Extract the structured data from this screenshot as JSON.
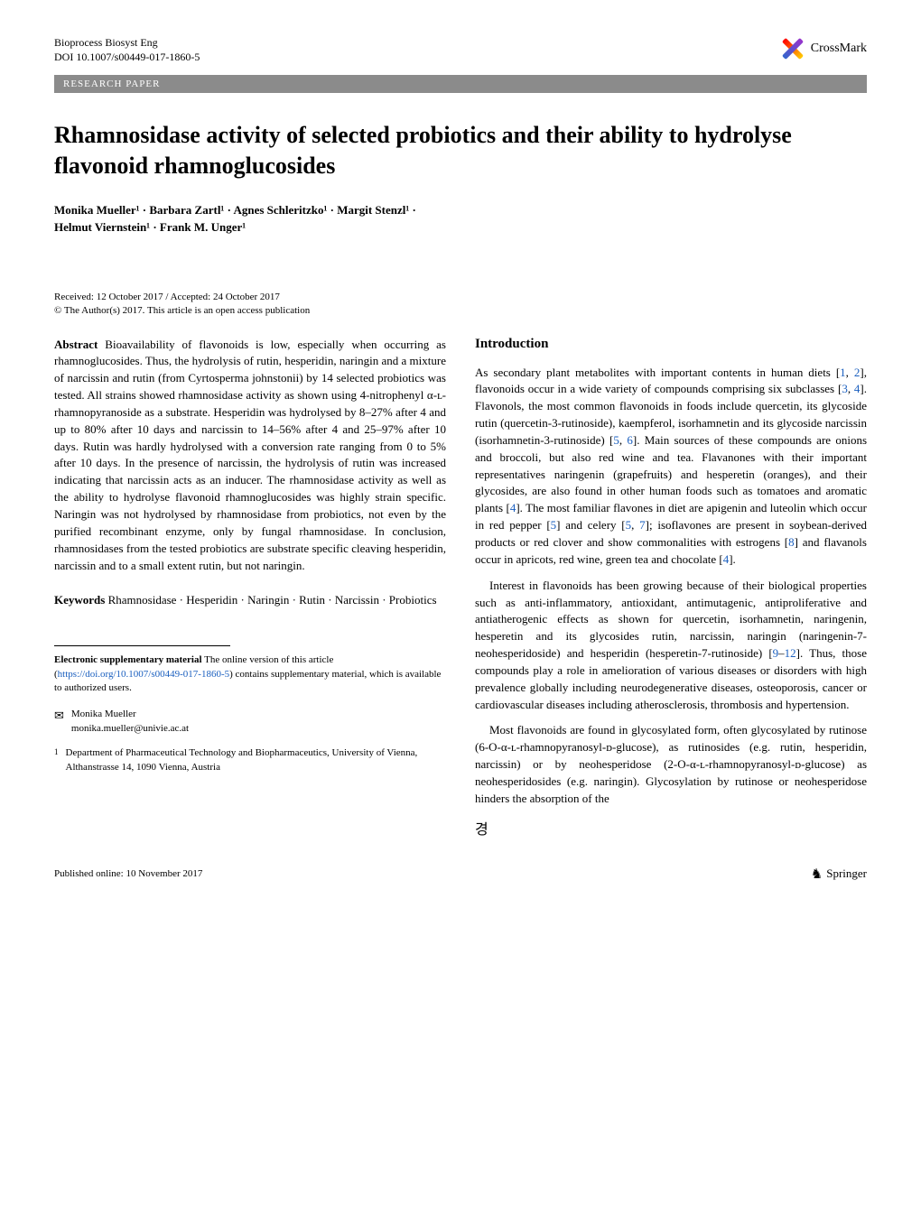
{
  "header": {
    "journal": "Bioprocess Biosyst Eng",
    "doi": "DOI 10.1007/s00449-017-1860-5",
    "crossmark_label": "CrossMark"
  },
  "paper_type": "RESEARCH PAPER",
  "title": "Rhamnosidase activity of selected probiotics and their ability to hydrolyse flavonoid rhamnoglucosides",
  "authors_line1": "Monika Mueller¹ · Barbara Zartl¹ · Agnes Schleritzko¹ · Margit Stenzl¹ ·",
  "authors_line2": "Helmut Viernstein¹ · Frank M. Unger¹",
  "dates": {
    "received_accepted": "Received: 12 October 2017 / Accepted: 24 October 2017",
    "copyright": "© The Author(s) 2017. This article is an open access publication"
  },
  "abstract": {
    "label": "Abstract",
    "text": "  Bioavailability of flavonoids is low, especially when occurring as rhamnoglucosides. Thus, the hydrolysis of rutin, hesperidin, naringin and a mixture of narcissin and rutin (from Cyrtosperma johnstonii) by 14 selected probiotics was tested. All strains showed rhamnosidase activity as shown using 4-nitrophenyl α-ʟ-rhamnopyranoside as a substrate. Hesperidin was hydrolysed by 8–27% after 4 and up to 80% after 10 days and narcissin to 14–56% after 4 and 25–97% after 10 days. Rutin was hardly hydrolysed with a conversion rate ranging from 0 to 5% after 10 days. In the presence of narcissin, the hydrolysis of rutin was increased indicating that narcissin acts as an inducer. The rhamnosidase activity as well as the ability to hydrolyse flavonoid rhamnoglucosides was highly strain specific. Naringin was not hydrolysed by rhamnosidase from probiotics, not even by the purified recombinant enzyme, only by fungal rhamnosidase. In conclusion, rhamnosidases from the tested probiotics are substrate specific cleaving hesperidin, narcissin and to a small extent rutin, but not naringin."
  },
  "keywords": {
    "label": "Keywords",
    "text": "  Rhamnosidase · Hesperidin · Naringin · Rutin · Narcissin · Probiotics"
  },
  "introduction": {
    "heading": "Introduction",
    "para1_a": "As secondary plant metabolites with important contents in human diets [",
    "ref1": "1",
    "para1_b": ", ",
    "ref2": "2",
    "para1_c": "], flavonoids occur in a wide variety of compounds comprising six subclasses [",
    "ref3": "3",
    "para1_d": ", ",
    "ref4": "4",
    "para1_e": "]. Flavonols, the most common flavonoids in foods include quercetin, its glycoside rutin (quercetin-3-rutinoside), kaempferol, isorhamnetin and its glycoside narcissin (isorhamnetin-3-rutinoside) [",
    "ref5": "5",
    "para1_f": ", ",
    "ref6": "6",
    "para1_g": "]. Main sources of these compounds are onions and broccoli, but also red wine and tea. Flavanones with their important representatives naringenin (grapefruits) and hesperetin (oranges), and their glycosides, are also found in other human foods such as tomatoes and aromatic plants [",
    "ref4b": "4",
    "para1_h": "]. The most familiar flavones in diet are apigenin and luteolin which occur in red pepper [",
    "ref5b": "5",
    "para1_i": "] and celery [",
    "ref5c": "5",
    "para1_j": ", ",
    "ref7": "7",
    "para1_k": "]; isoflavones are present in soybean-derived products or red clover and show commonalities with estrogens [",
    "ref8": "8",
    "para1_l": "] and flavanols occur in apricots, red wine, green tea and chocolate [",
    "ref4c": "4",
    "para1_m": "].",
    "para2_a": "Interest in flavonoids has been growing because of their biological properties such as anti-inflammatory, antioxidant, antimutagenic, antiproliferative and antiatherogenic effects as shown for quercetin, isorhamnetin, naringenin, hesperetin and its glycosides rutin, narcissin, naringin (naringenin-7-neohesperidoside) and hesperidin (hesperetin-7-rutinoside) [",
    "ref9": "9",
    "para2_b": "–",
    "ref12": "12",
    "para2_c": "]. Thus, those compounds play a role in amelioration of various diseases or disorders with high prevalence globally including neurodegenerative diseases, osteoporosis, cancer or cardiovascular diseases including atherosclerosis, thrombosis and hypertension.",
    "para3": "Most flavonoids are found in glycosylated form, often glycosylated by rutinose (6-O-α-ʟ-rhamnopyranosyl-ᴅ-glucose), as rutinosides (e.g. rutin, hesperidin, narcissin) or by neohesperidose (2-O-α-ʟ-rhamnopyranosyl-ᴅ-glucose) as neohesperidosides (e.g. naringin). Glycosylation by rutinose or neohesperidose hinders the absorption of the"
  },
  "supplementary": {
    "label": "Electronic supplementary material",
    "text_a": "  The online version of this article (",
    "link": "https://doi.org/10.1007/s00449-017-1860-5",
    "text_b": ") contains supplementary material, which is available to authorized users."
  },
  "correspondence": {
    "name": "Monika Mueller",
    "email": "monika.mueller@univie.ac.at"
  },
  "affiliation": {
    "num": "1",
    "text": "Department of Pharmaceutical Technology and Biopharmaceutics, University of Vienna, Althanstrasse 14, 1090 Vienna, Austria"
  },
  "footer": {
    "published": "Published online: 10 November 2017",
    "publisher": "Springer"
  },
  "colors": {
    "link": "#1a5fbf",
    "bar_bg": "#8b8b8b",
    "bar_text": "#ffffff",
    "text": "#000000",
    "background": "#ffffff"
  }
}
